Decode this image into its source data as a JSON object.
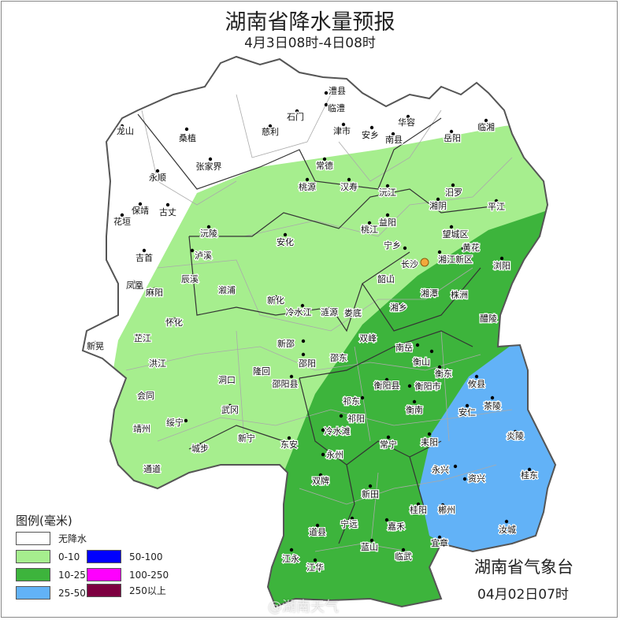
{
  "title": "湖南省降水量预报",
  "subtitle": "4月3日08时-4日08时",
  "legend": {
    "title": "图例(毫米)",
    "items": [
      {
        "label": "无降水",
        "color": "#ffffff"
      },
      {
        "label": "0-10",
        "color": "#a6ee8e"
      },
      {
        "label": "10-25",
        "color": "#3db43c"
      },
      {
        "label": "25-50",
        "color": "#62b2f7"
      },
      {
        "label": "50-100",
        "color": "#0000fe"
      },
      {
        "label": "100-250",
        "color": "#fe00fe"
      },
      {
        "label": "250以上",
        "color": "#7d0040"
      }
    ]
  },
  "capital_marker": {
    "name": "长沙",
    "color": "#f2a93b"
  },
  "places": [
    "澧县",
    "临澧",
    "石门",
    "慈利",
    "津市",
    "安乡",
    "华容",
    "南县",
    "岳阳",
    "临湘",
    "龙山",
    "桑植",
    "张家界",
    "永顺",
    "常德",
    "桃源",
    "汉寿",
    "沅江",
    "汨罗",
    "湘阴",
    "平江",
    "保靖",
    "花垣",
    "古丈",
    "沅陵",
    "安化",
    "桃江",
    "益阳",
    "望城区",
    "宁乡",
    "长沙",
    "湘江新区",
    "黄花",
    "浏阳",
    "吉首",
    "泸溪",
    "辰溪",
    "凤凰",
    "麻阳",
    "溆浦",
    "韶山",
    "湘潭",
    "株洲",
    "新化",
    "冷水江",
    "涟源",
    "娄底",
    "湘乡",
    "醴陵",
    "怀化",
    "新晃",
    "芷江",
    "双峰",
    "南岳",
    "衡山",
    "衡东",
    "邵东",
    "新邵",
    "邵阳",
    "洪江",
    "隆回",
    "洞口",
    "邵阳县",
    "衡阳县",
    "衡阳市",
    "攸县",
    "会同",
    "祁东",
    "衡南",
    "茶陵",
    "安仁",
    "绥宁",
    "武冈",
    "祁阳",
    "冷水滩",
    "炎陵",
    "靖州",
    "常宁",
    "耒阳",
    "永州",
    "东安",
    "新宁",
    "城步",
    "通道",
    "永兴",
    "资兴",
    "桂东",
    "双牌",
    "新田",
    "桂阳",
    "郴州",
    "道县",
    "宁远",
    "嘉禾",
    "汝城",
    "蓝山",
    "宜章",
    "临武",
    "江永",
    "江华"
  ],
  "issuer": "湖南省气象台",
  "issue_time": "04月02日07时",
  "watermark": "@湖南天气"
}
